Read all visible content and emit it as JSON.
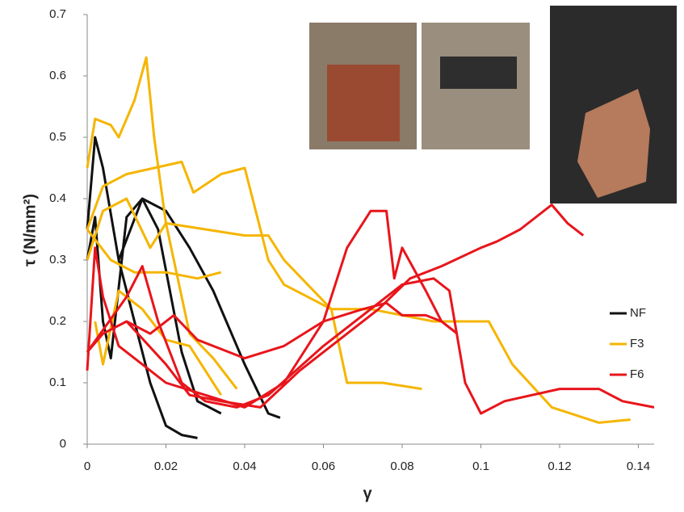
{
  "chart_data": {
    "type": "line",
    "x_label": "γ",
    "y_label": "τ (N/mm²)",
    "xlim": [
      0,
      0.144
    ],
    "xticks": [
      0,
      0.02,
      0.04,
      0.06,
      0.08,
      0.1,
      0.12,
      0.14
    ],
    "ylim": [
      0,
      0.7
    ],
    "yticks": [
      0,
      0.1,
      0.2,
      0.3,
      0.4,
      0.5,
      0.6,
      0.7
    ],
    "legend": "right",
    "series": [
      {
        "name": "NF",
        "color": "#111111",
        "lines": [
          {
            "x": [
              0,
              0.002,
              0.004,
              0.008,
              0.012,
              0.016,
              0.02,
              0.024,
              0.028
            ],
            "values": [
              0.35,
              0.5,
              0.45,
              0.3,
              0.2,
              0.1,
              0.03,
              0.015,
              0.01
            ]
          },
          {
            "x": [
              0,
              0.002,
              0.004,
              0.006,
              0.01,
              0.014,
              0.018,
              0.024,
              0.028,
              0.034
            ],
            "values": [
              0.3,
              0.37,
              0.2,
              0.14,
              0.37,
              0.4,
              0.35,
              0.15,
              0.07,
              0.05
            ]
          },
          {
            "x": [
              0.008,
              0.014,
              0.02,
              0.026,
              0.032,
              0.04,
              0.046,
              0.049
            ],
            "values": [
              0.3,
              0.4,
              0.38,
              0.32,
              0.25,
              0.13,
              0.05,
              0.043
            ]
          }
        ]
      },
      {
        "name": "F3",
        "color": "#f5b500",
        "lines": [
          {
            "x": [
              0,
              0.002,
              0.006,
              0.008,
              0.012,
              0.015,
              0.017,
              0.02,
              0.026,
              0.032,
              0.038
            ],
            "values": [
              0.45,
              0.53,
              0.52,
              0.5,
              0.56,
              0.63,
              0.5,
              0.36,
              0.18,
              0.14,
              0.09
            ]
          },
          {
            "x": [
              0,
              0.004,
              0.01,
              0.024,
              0.027,
              0.034,
              0.04,
              0.046,
              0.05,
              0.056,
              0.062,
              0.066,
              0.075,
              0.085
            ],
            "values": [
              0.35,
              0.42,
              0.44,
              0.46,
              0.41,
              0.44,
              0.45,
              0.3,
              0.26,
              0.24,
              0.22,
              0.1,
              0.1,
              0.09
            ]
          },
          {
            "x": [
              0,
              0.004,
              0.01,
              0.016,
              0.02,
              0.03,
              0.04,
              0.046,
              0.05,
              0.056,
              0.062,
              0.072,
              0.08,
              0.088,
              0.096,
              0.102,
              0.108,
              0.118,
              0.13,
              0.138
            ],
            "values": [
              0.3,
              0.38,
              0.4,
              0.32,
              0.36,
              0.35,
              0.34,
              0.34,
              0.3,
              0.26,
              0.22,
              0.22,
              0.21,
              0.2,
              0.2,
              0.2,
              0.13,
              0.06,
              0.035,
              0.04
            ]
          },
          {
            "x": [
              0,
              0.006,
              0.012,
              0.02,
              0.028,
              0.034
            ],
            "values": [
              0.35,
              0.3,
              0.28,
              0.28,
              0.27,
              0.28
            ]
          },
          {
            "x": [
              0.002,
              0.004,
              0.008,
              0.014,
              0.02,
              0.026,
              0.034
            ],
            "values": [
              0.2,
              0.13,
              0.25,
              0.22,
              0.17,
              0.16,
              0.08
            ]
          }
        ]
      },
      {
        "name": "F6",
        "color": "#e8151b",
        "lines": [
          {
            "x": [
              0,
              0.002,
              0.004,
              0.008,
              0.014,
              0.02,
              0.03,
              0.04,
              0.05,
              0.06,
              0.066,
              0.072,
              0.076,
              0.078,
              0.08,
              0.086,
              0.09,
              0.094
            ],
            "values": [
              0.12,
              0.32,
              0.24,
              0.16,
              0.13,
              0.1,
              0.08,
              0.06,
              0.1,
              0.2,
              0.32,
              0.38,
              0.38,
              0.27,
              0.32,
              0.25,
              0.2,
              0.18
            ]
          },
          {
            "x": [
              0,
              0.004,
              0.01,
              0.016,
              0.022,
              0.028,
              0.036,
              0.04,
              0.05,
              0.06,
              0.07,
              0.076,
              0.08,
              0.086,
              0.09,
              0.094
            ],
            "values": [
              0.15,
              0.18,
              0.2,
              0.18,
              0.21,
              0.17,
              0.15,
              0.14,
              0.16,
              0.2,
              0.22,
              0.23,
              0.21,
              0.21,
              0.2,
              0.18
            ]
          },
          {
            "x": [
              0,
              0.01,
              0.014,
              0.018,
              0.024,
              0.03,
              0.038,
              0.046,
              0.06,
              0.07,
              0.08,
              0.088,
              0.092,
              0.096,
              0.1,
              0.106,
              0.12,
              0.13,
              0.136,
              0.144
            ],
            "values": [
              0.15,
              0.24,
              0.29,
              0.2,
              0.1,
              0.07,
              0.06,
              0.08,
              0.16,
              0.21,
              0.26,
              0.27,
              0.25,
              0.1,
              0.05,
              0.07,
              0.09,
              0.09,
              0.07,
              0.06
            ]
          },
          {
            "x": [
              0.01,
              0.02,
              0.026,
              0.034,
              0.044,
              0.054,
              0.066,
              0.074,
              0.082,
              0.09,
              0.1,
              0.104,
              0.11,
              0.118,
              0.122,
              0.126
            ],
            "values": [
              0.2,
              0.13,
              0.08,
              0.07,
              0.06,
              0.12,
              0.18,
              0.22,
              0.27,
              0.29,
              0.32,
              0.33,
              0.35,
              0.39,
              0.36,
              0.34
            ]
          }
        ]
      }
    ]
  }
}
